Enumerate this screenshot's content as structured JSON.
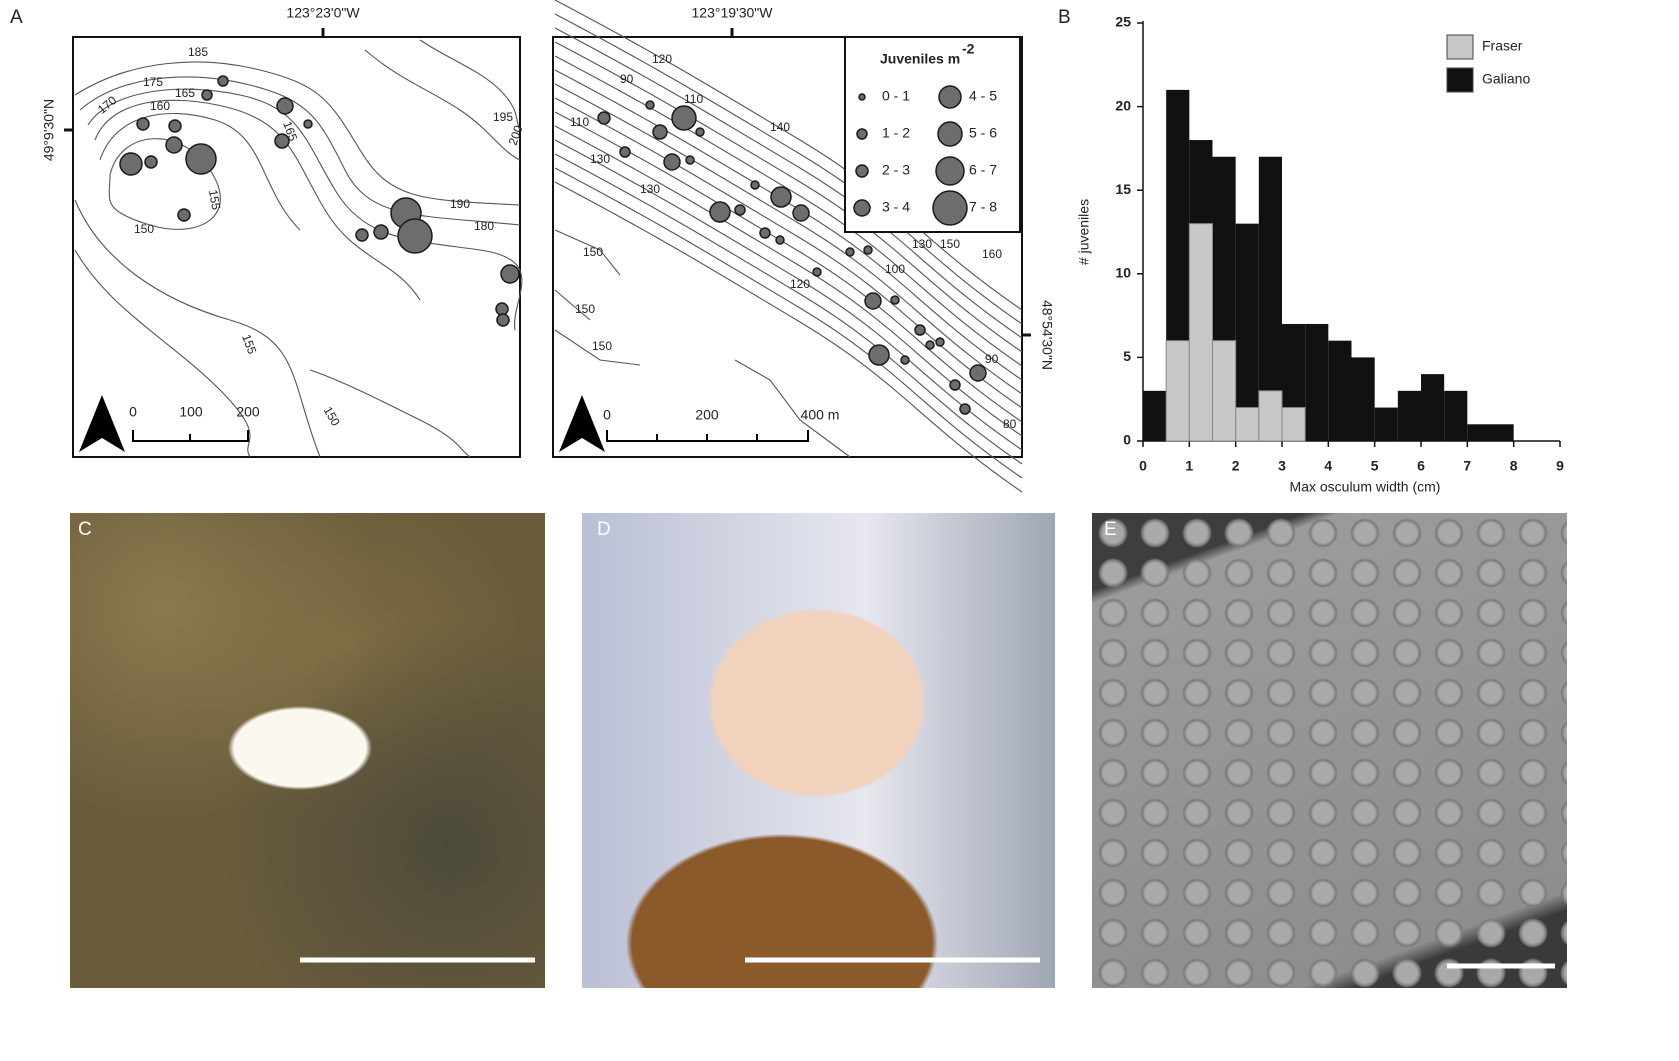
{
  "panel_labels": [
    "A",
    "B",
    "C",
    "D",
    "E"
  ],
  "map_left": {
    "top_label": "123°23'0\"W",
    "side_label": "49°9'30\"N",
    "contour_labels": [
      "185",
      "175",
      "170",
      "165",
      "160",
      "165",
      "155",
      "150",
      "195",
      "200",
      "190",
      "180",
      "155",
      "150"
    ],
    "scale_labels": [
      "0",
      "100",
      "200"
    ]
  },
  "map_right": {
    "top_label": "123°19'30\"W",
    "side_label": "48°54'30\"N",
    "contour_labels": [
      "120",
      "90",
      "110",
      "110",
      "140",
      "130",
      "130",
      "120",
      "100",
      "130",
      "150",
      "160",
      "150",
      "150",
      "150",
      "90",
      "80"
    ],
    "scale_labels": [
      "0",
      "200",
      "400 m"
    ]
  },
  "legend": {
    "title": "Juveniles m",
    "title_exponent": "-2",
    "entries": [
      "0 - 1",
      "1 - 2",
      "2 - 3",
      "3 - 4",
      "4 - 5",
      "5 - 6",
      "6 - 7",
      "7 - 8"
    ]
  },
  "chart_data": {
    "type": "histogram",
    "x_label": "Max osculum width (cm)",
    "y_label": "# juveniles",
    "bins": [
      0,
      0.5,
      1,
      1.5,
      2,
      2.5,
      3,
      3.5,
      4,
      4.5,
      5,
      5.5,
      6,
      6.5,
      7,
      7.5,
      8
    ],
    "series": [
      {
        "name": "Galiano",
        "color": "#111111",
        "values": [
          3,
          21,
          18,
          17,
          13,
          17,
          7,
          7,
          6,
          5,
          2,
          3,
          4,
          3,
          1,
          1
        ]
      },
      {
        "name": "Fraser",
        "color": "#c8c8c8",
        "values": [
          0,
          6,
          13,
          6,
          2,
          3,
          2,
          0,
          0,
          0,
          0,
          0,
          0,
          0,
          0,
          0
        ]
      }
    ],
    "xlim": [
      0,
      9
    ],
    "ylim": [
      0,
      25
    ],
    "xticks": [
      0,
      1,
      2,
      3,
      4,
      5,
      6,
      7,
      8,
      9
    ],
    "yticks": [
      0,
      5,
      10,
      15,
      20,
      25
    ],
    "legend": "top-right"
  }
}
